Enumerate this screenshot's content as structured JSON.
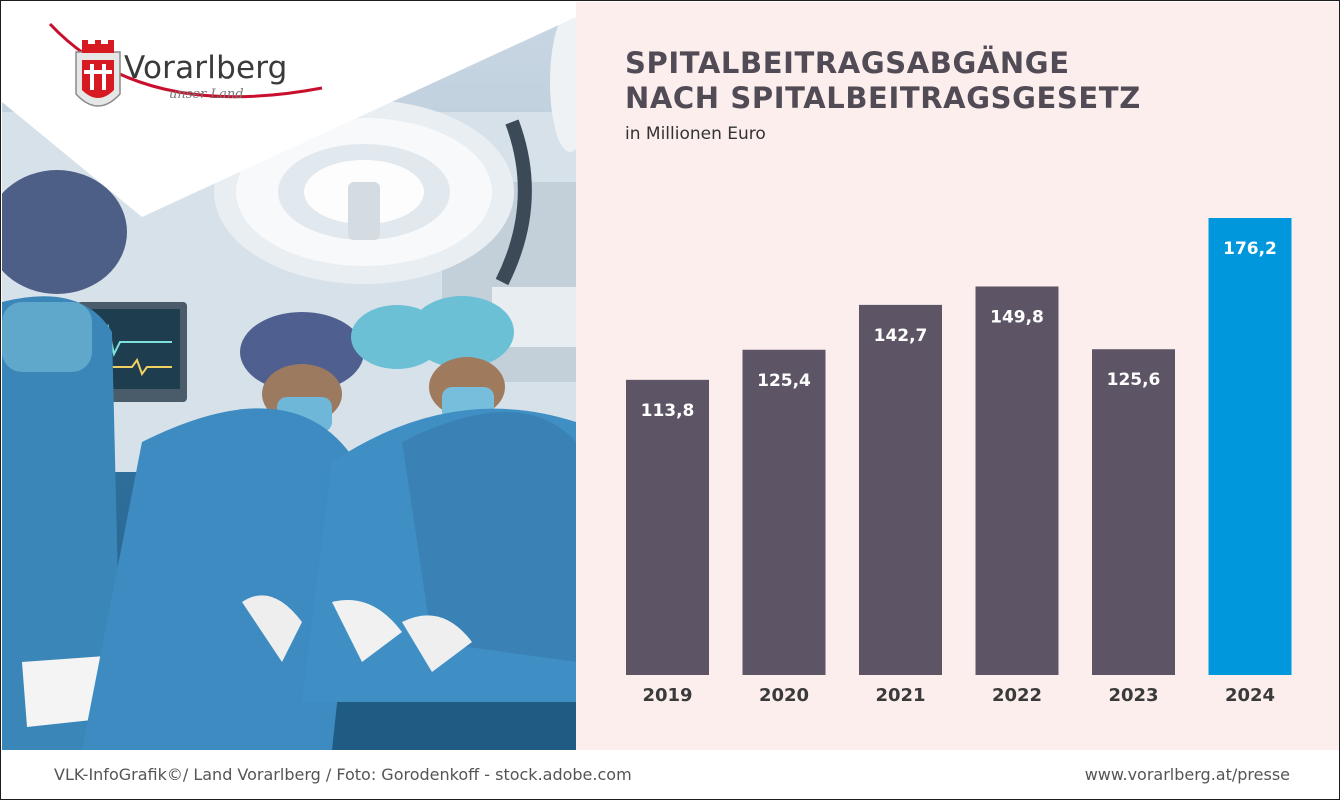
{
  "logo": {
    "name": "Vorarlberg",
    "tagline": "unser Land"
  },
  "header": {
    "title_line1": "SPITALBEITRAGSABGÄNGE",
    "title_line2": "NACH SPITALBEITRAGSGESETZ",
    "subtitle": "in Millionen Euro"
  },
  "footer": {
    "credit": "VLK-InfoGrafik©/ Land Vorarlberg / Foto: Gorodenkoff - stock.adobe.com",
    "url": "www.vorarlberg.at/presse"
  },
  "colors": {
    "bar": "#5d5565",
    "highlight": "#0097dc",
    "panel_bg": "#fbeeed",
    "label": "#ffffff",
    "axis_text": "#3a3a3a"
  },
  "chart_data": {
    "type": "bar",
    "title": "SPITALBEITRAGSABGÄNGE NACH SPITALBEITRAGSGESETZ",
    "subtitle": "in Millionen Euro",
    "categories": [
      "2019",
      "2020",
      "2021",
      "2022",
      "2023",
      "2024"
    ],
    "values": [
      113.8,
      125.4,
      142.7,
      149.8,
      125.6,
      176.2
    ],
    "value_labels": [
      "113,8",
      "125,4",
      "142,7",
      "149,8",
      "125,6",
      "176,2"
    ],
    "highlight_index": 5,
    "xlabel": "",
    "ylabel": "",
    "ylim": [
      0,
      176.2
    ],
    "grid": false,
    "legend": "none"
  }
}
